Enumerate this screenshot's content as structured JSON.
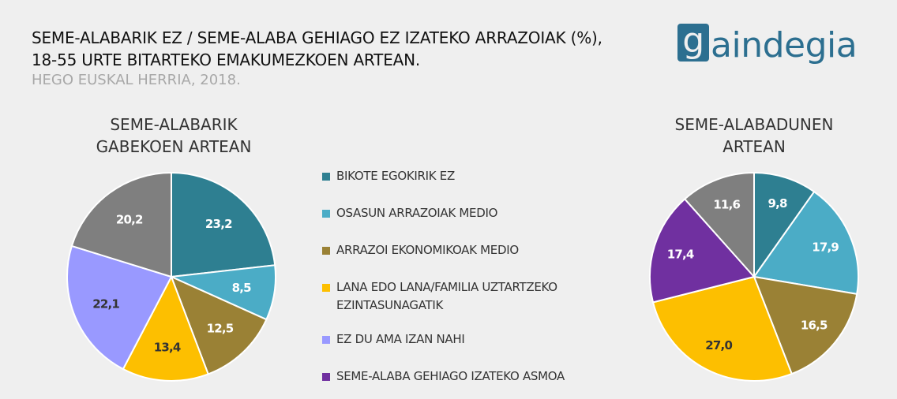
{
  "header": {
    "title_line1": "SEME-ALABARIK EZ / SEME-ALABA GEHIAGO EZ IZATEKO ARRAZOIAK (%),",
    "title_line2": "18-55 URTE BITARTEKO EMAKUMEZKOEN ARTEAN.",
    "subtitle": "HEGO EUSKAL HERRIA, 2018."
  },
  "logo": {
    "first_letter": "g",
    "rest": "aindegia",
    "color": "#2c6f90"
  },
  "colors": {
    "bikote": "#2e7f91",
    "osasun": "#4bacc6",
    "ekonomiko": "#9a8135",
    "lana": "#fdbf00",
    "ama": "#9999ff",
    "asmoa": "#7030a0",
    "gray": "#7f7f7f"
  },
  "legend": [
    {
      "label": "BIKOTE EGOKIRIK EZ",
      "color": "#2e7f91"
    },
    {
      "label": "OSASUN ARRAZOIAK MEDIO",
      "color": "#4bacc6"
    },
    {
      "label": "ARRAZOI EKONOMIKOAK MEDIO",
      "color": "#9a8135"
    },
    {
      "label": "LANA EDO LANA/FAMILIA UZTARTZEKO",
      "label2": "EZINTASUNAGATIK",
      "color": "#fdbf00"
    },
    {
      "label": "EZ DU AMA IZAN NAHI",
      "color": "#9999ff"
    },
    {
      "label": "SEME-ALABA GEHIAGO IZATEKO ASMOA",
      "color": "#7030a0"
    }
  ],
  "chart_data": [
    {
      "type": "pie",
      "title_line1": "SEME-ALABARIK",
      "title_line2": "GABEKOEN ARTEAN",
      "slices": [
        {
          "value": 23.2,
          "label": "23,2",
          "color": "#2e7f91",
          "text_color": "#ffffff"
        },
        {
          "value": 8.5,
          "label": "8,5",
          "color": "#4bacc6",
          "text_color": "#ffffff"
        },
        {
          "value": 12.5,
          "label": "12,5",
          "color": "#9a8135",
          "text_color": "#ffffff"
        },
        {
          "value": 13.4,
          "label": "13,4",
          "color": "#fdbf00",
          "text_color": "#333333"
        },
        {
          "value": 22.1,
          "label": "22,1",
          "color": "#9999ff",
          "text_color": "#333333"
        },
        {
          "value": 20.2,
          "label": "20,2",
          "color": "#7f7f7f",
          "text_color": "#ffffff"
        }
      ]
    },
    {
      "type": "pie",
      "title_line1": "SEME-ALABADUNEN",
      "title_line2": "ARTEAN",
      "slices": [
        {
          "value": 9.8,
          "label": "9,8",
          "color": "#2e7f91",
          "text_color": "#ffffff"
        },
        {
          "value": 17.9,
          "label": "17,9",
          "color": "#4bacc6",
          "text_color": "#ffffff"
        },
        {
          "value": 16.5,
          "label": "16,5",
          "color": "#9a8135",
          "text_color": "#ffffff"
        },
        {
          "value": 27.0,
          "label": "27,0",
          "color": "#fdbf00",
          "text_color": "#333333"
        },
        {
          "value": 17.4,
          "label": "17,4",
          "color": "#7030a0",
          "text_color": "#ffffff"
        },
        {
          "value": 11.6,
          "label": "11,6",
          "color": "#7f7f7f",
          "text_color": "#ffffff"
        }
      ]
    }
  ]
}
